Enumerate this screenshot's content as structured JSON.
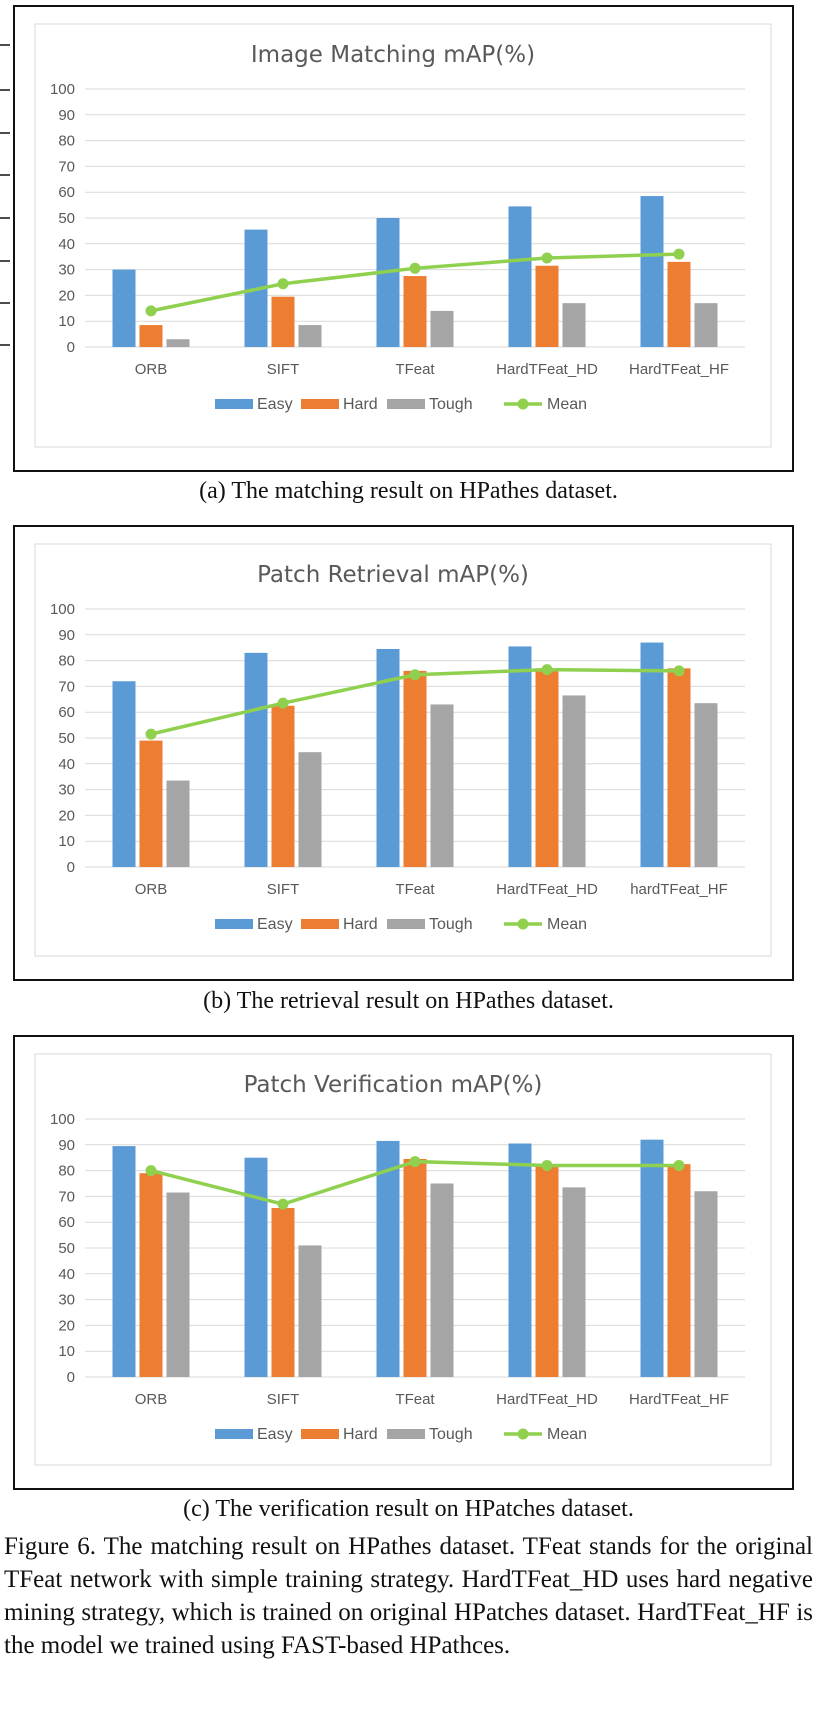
{
  "colors": {
    "easy": "#5b9bd5",
    "hard": "#ed7d31",
    "tough": "#a5a5a5",
    "mean": "#8fd14f"
  },
  "legend": [
    "Easy",
    "Hard",
    "Tough",
    "Mean"
  ],
  "captions": [
    "(a)  The matching result on HPathes dataset.",
    "(b)  The retrieval result on HPathes dataset.",
    "(c)  The verification result on HPatches dataset."
  ],
  "figure_caption": "Figure 6. The matching result on HPathes dataset. TFeat stands for the original TFeat network with simple training strategy. HardTFeat_HD uses hard negative mining strategy, which is trained on original HPatches dataset. HardTFeat_HF is the model we trained using FAST-based HPathces.",
  "chart_data": [
    {
      "type": "bar",
      "title": "Image Matching mAP(%)",
      "categories": [
        "ORB",
        "SIFT",
        "TFeat",
        "HardTFeat_HD",
        "HardTFeat_HF"
      ],
      "yticks": [
        "0",
        "10",
        "20",
        "30",
        "40",
        "50",
        "60",
        "70",
        "80",
        "90",
        "100"
      ],
      "ylim": [
        0,
        100
      ],
      "series": [
        {
          "name": "Easy",
          "type": "bar",
          "values": [
            30,
            45.5,
            50,
            54.5,
            58.5
          ]
        },
        {
          "name": "Hard",
          "type": "bar",
          "values": [
            8.5,
            19.5,
            27.5,
            31.5,
            33
          ]
        },
        {
          "name": "Tough",
          "type": "bar",
          "values": [
            3,
            8.5,
            14,
            17,
            17
          ]
        },
        {
          "name": "Mean",
          "type": "line",
          "values": [
            14,
            24.5,
            30.5,
            34.5,
            36
          ]
        }
      ],
      "legend_position": "bottom"
    },
    {
      "type": "bar",
      "title": "Patch Retrieval mAP(%)",
      "categories": [
        "ORB",
        "SIFT",
        "TFeat",
        "HardTFeat_HD",
        "hardTFeat_HF"
      ],
      "yticks": [
        "0",
        "10",
        "20",
        "30",
        "40",
        "50",
        "60",
        "70",
        "80",
        "90",
        "100"
      ],
      "ylim": [
        0,
        100
      ],
      "series": [
        {
          "name": "Easy",
          "type": "bar",
          "values": [
            72,
            83,
            84.5,
            85.5,
            87
          ]
        },
        {
          "name": "Hard",
          "type": "bar",
          "values": [
            49,
            62.5,
            76,
            77,
            77
          ]
        },
        {
          "name": "Tough",
          "type": "bar",
          "values": [
            33.5,
            44.5,
            63,
            66.5,
            63.5
          ]
        },
        {
          "name": "Mean",
          "type": "line",
          "values": [
            51.5,
            63.5,
            74.5,
            76.5,
            76
          ]
        }
      ],
      "legend_position": "bottom"
    },
    {
      "type": "bar",
      "title": "Patch Verification mAP(%)",
      "categories": [
        "ORB",
        "SIFT",
        "TFeat",
        "HardTFeat_HD",
        "HardTFeat_HF"
      ],
      "yticks": [
        "0",
        "10",
        "20",
        "30",
        "40",
        "50",
        "60",
        "70",
        "80",
        "90",
        "100"
      ],
      "ylim": [
        0,
        100
      ],
      "series": [
        {
          "name": "Easy",
          "type": "bar",
          "values": [
            89.5,
            85,
            91.5,
            90.5,
            92
          ]
        },
        {
          "name": "Hard",
          "type": "bar",
          "values": [
            79,
            65.5,
            84.5,
            82,
            82.5
          ]
        },
        {
          "name": "Tough",
          "type": "bar",
          "values": [
            71.5,
            51,
            75,
            73.5,
            72
          ]
        },
        {
          "name": "Mean",
          "type": "line",
          "values": [
            80,
            67,
            83.5,
            82,
            82
          ]
        }
      ],
      "legend_position": "bottom"
    }
  ]
}
